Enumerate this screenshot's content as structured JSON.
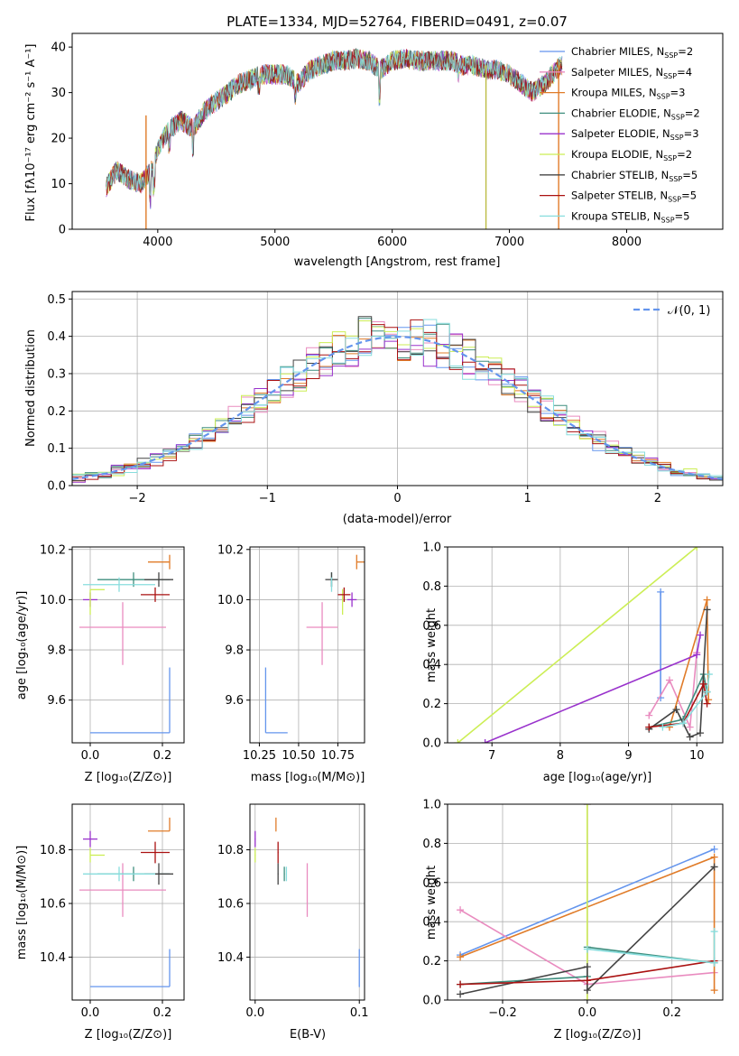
{
  "spectrum": {
    "title": "PLATE=1334, MJD=52764, FIBERID=0491, z=0.07",
    "xlabel": "wavelength [Angstrom, rest frame]",
    "ylabel": "Flux [fλ10⁻¹⁷ erg cm⁻² s⁻¹ A⁻¹]",
    "xlim": [
      3270,
      8820
    ],
    "ylim": [
      0,
      43
    ],
    "xticks": [
      4000,
      5000,
      6000,
      7000,
      8000
    ],
    "yticks": [
      0,
      10,
      20,
      30,
      40
    ],
    "continuum": [
      [
        3560,
        9
      ],
      [
        3650,
        13
      ],
      [
        3750,
        11
      ],
      [
        3850,
        10
      ],
      [
        3950,
        13
      ],
      [
        4000,
        18
      ],
      [
        4100,
        22
      ],
      [
        4200,
        24
      ],
      [
        4300,
        22
      ],
      [
        4400,
        26
      ],
      [
        4500,
        28
      ],
      [
        4600,
        30
      ],
      [
        4700,
        32
      ],
      [
        4800,
        33
      ],
      [
        4900,
        34
      ],
      [
        5000,
        34
      ],
      [
        5100,
        34
      ],
      [
        5200,
        32
      ],
      [
        5300,
        35
      ],
      [
        5400,
        36
      ],
      [
        5500,
        37
      ],
      [
        5600,
        37
      ],
      [
        5700,
        37.5
      ],
      [
        5800,
        37
      ],
      [
        5900,
        35
      ],
      [
        6000,
        37
      ],
      [
        6100,
        37.5
      ],
      [
        6200,
        37
      ],
      [
        6300,
        37
      ],
      [
        6400,
        37
      ],
      [
        6500,
        37
      ],
      [
        6600,
        36
      ],
      [
        6700,
        36
      ],
      [
        6800,
        35
      ],
      [
        6900,
        35
      ],
      [
        7000,
        34
      ],
      [
        7100,
        32
      ],
      [
        7200,
        30
      ],
      [
        7300,
        32
      ],
      [
        7400,
        35
      ],
      [
        7450,
        36
      ]
    ],
    "lines": [
      {
        "x": 3900,
        "y_min": 0,
        "y_max": 25
      },
      {
        "x": 6800,
        "y_min": 0,
        "y_max": 36
      },
      {
        "x": 7420,
        "y_min": 0,
        "y_max": 36
      }
    ],
    "legend_position": "upper right"
  },
  "residuals": {
    "xlabel": "(data-model)/error",
    "ylabel": "Normed distribution",
    "xlim": [
      -2.5,
      2.5
    ],
    "ylim": [
      0,
      0.52
    ],
    "xticks": [
      -2,
      -1,
      0,
      1,
      2
    ],
    "xtick_labels": [
      "−2",
      "−1",
      "0",
      "1",
      "2"
    ],
    "yticks": [
      0.0,
      0.1,
      0.2,
      0.3,
      0.4,
      0.5
    ],
    "ytick_labels": [
      "0.0",
      "0.1",
      "0.2",
      "0.3",
      "0.4",
      "0.5"
    ],
    "gaussian_label": "𝒩(0, 1)",
    "legend_position": "upper right",
    "bin_width": 0.1
  },
  "models": [
    {
      "name": "Chabrier MILES",
      "n": "2",
      "color": "#6495ED"
    },
    {
      "name": "Salpeter MILES",
      "n": "4",
      "color": "#E98BBF"
    },
    {
      "name": "Kroupa MILES",
      "n": "3",
      "color": "#E07B28"
    },
    {
      "name": "Chabrier ELODIE",
      "n": "2",
      "color": "#3E8E7E"
    },
    {
      "name": "Salpeter ELODIE",
      "n": "3",
      "color": "#9932CC"
    },
    {
      "name": "Kroupa ELODIE",
      "n": "2",
      "color": "#CCEE55"
    },
    {
      "name": "Chabrier STELIB",
      "n": "5",
      "color": "#444444"
    },
    {
      "name": "Salpeter STELIB",
      "n": "5",
      "color": "#AA1111"
    },
    {
      "name": "Kroupa STELIB",
      "n": "5",
      "color": "#88DDDD"
    }
  ],
  "legend_suffix": {
    "prefix": "N",
    "subscript": "SSP"
  },
  "fit_points": [
    {
      "Z": 0.22,
      "Z_err": [
        0.22,
        0.0
      ],
      "age": 9.47,
      "age_err": [
        0.0,
        0.26
      ],
      "mass": 10.29,
      "mass_err": [
        0.0,
        0.14
      ],
      "ebv": 0.1,
      "ebv_err": [
        0.0,
        0.0
      ]
    },
    {
      "Z": 0.09,
      "Z_err": [
        0.12,
        0.12
      ],
      "age": 9.89,
      "age_err": [
        0.15,
        0.1
      ],
      "mass": 10.65,
      "mass_err": [
        0.1,
        0.1
      ],
      "ebv": 0.05,
      "ebv_err": [
        0.0,
        0.0
      ]
    },
    {
      "Z": 0.22,
      "Z_err": [
        0.06,
        0.0
      ],
      "age": 10.15,
      "age_err": [
        0.0,
        0.0
      ],
      "mass": 10.87,
      "mass_err": [
        0.0,
        0.05
      ],
      "ebv": 0.02,
      "ebv_err": [
        0.0,
        0.0
      ]
    },
    {
      "Z": 0.12,
      "Z_err": [
        0.1,
        0.1
      ],
      "age": 10.08,
      "age_err": [
        0.0,
        0.0
      ],
      "mass": 10.71,
      "mass_err": [
        0.0,
        0.0
      ],
      "ebv": 0.028,
      "ebv_err": [
        0.0,
        0.0
      ]
    },
    {
      "Z": 0.0,
      "Z_err": [
        0.02,
        0.02
      ],
      "age": 10.0,
      "age_err": [
        0.0,
        0.0
      ],
      "mass": 10.84,
      "mass_err": [
        0.03,
        0.03
      ],
      "ebv": 0.0,
      "ebv_err": [
        0.0,
        0.0
      ]
    },
    {
      "Z": 0.0,
      "Z_err": [
        0.0,
        0.04
      ],
      "age": 10.04,
      "age_err": [
        0.1,
        0.0
      ],
      "mass": 10.78,
      "mass_err": [
        0.0,
        0.0
      ],
      "ebv": 0.0,
      "ebv_err": [
        0.0,
        0.0
      ]
    },
    {
      "Z": 0.19,
      "Z_err": [
        0.04,
        0.04
      ],
      "age": 10.08,
      "age_err": [
        0.0,
        0.0
      ],
      "mass": 10.71,
      "mass_err": [
        0.04,
        0.04
      ],
      "ebv": 0.022,
      "ebv_err": [
        0.0,
        0.0
      ]
    },
    {
      "Z": 0.18,
      "Z_err": [
        0.04,
        0.04
      ],
      "age": 10.02,
      "age_err": [
        0.0,
        0.0
      ],
      "mass": 10.79,
      "mass_err": [
        0.04,
        0.04
      ],
      "ebv": 0.022,
      "ebv_err": [
        0.0,
        0.0
      ]
    },
    {
      "Z": 0.08,
      "Z_err": [
        0.1,
        0.1
      ],
      "age": 10.06,
      "age_err": [
        0.0,
        0.0
      ],
      "mass": 10.71,
      "mass_err": [
        0.0,
        0.0
      ],
      "ebv": 0.03,
      "ebv_err": [
        0.0,
        0.0
      ]
    }
  ],
  "age_Z": {
    "xlabel": "Z [log₁₀(Z/Z⊙)]",
    "ylabel": "age  [log₁₀(age/yr)]",
    "xlim": [
      -0.05,
      0.26
    ],
    "ylim": [
      9.43,
      10.21
    ],
    "xticks": [
      0.0,
      0.2
    ],
    "xtick_labels": [
      "0.0",
      "0.2"
    ],
    "yticks": [
      9.6,
      9.8,
      10.0,
      10.2
    ],
    "ytick_labels": [
      "9.6",
      "9.8",
      "10.0",
      "10.2"
    ]
  },
  "age_mass": {
    "xlabel": "mass [log₁₀(M/M⊙)]",
    "xlim": [
      10.19,
      10.92
    ],
    "ylim": [
      9.43,
      10.21
    ],
    "xticks": [
      10.25,
      10.5,
      10.75
    ],
    "xtick_labels": [
      "10.25",
      "10.50",
      "10.75"
    ],
    "yticks": [
      9.6,
      9.8,
      10.0,
      10.2
    ],
    "ytick_labels": [
      "9.6",
      "9.8",
      "10.0",
      "10.2"
    ]
  },
  "weight_age": {
    "xlabel": "age  [log₁₀(age/yr)]",
    "ylabel": "mass weight",
    "xlim": [
      6.35,
      10.38
    ],
    "ylim": [
      0,
      1
    ],
    "xticks": [
      7,
      8,
      9,
      10
    ],
    "xtick_labels": [
      "7",
      "8",
      "9",
      "10"
    ],
    "yticks": [
      0,
      0.2,
      0.4,
      0.6,
      0.8,
      1.0
    ],
    "ytick_labels": [
      "0.0",
      "0.2",
      "0.4",
      "0.6",
      "0.8",
      "1.0"
    ],
    "series": [
      {
        "x": [
          9.47,
          9.47
        ],
        "y": [
          0.23,
          0.77
        ]
      },
      {
        "x": [
          9.3,
          9.6,
          9.9,
          10.0
        ],
        "y": [
          0.14,
          0.32,
          0.08,
          0.46
        ]
      },
      {
        "x": [
          9.6,
          10.15,
          10.17
        ],
        "y": [
          0.08,
          0.73,
          0.22
        ]
      },
      {
        "x": [
          9.3,
          9.8,
          10.1,
          10.15
        ],
        "y": [
          0.08,
          0.12,
          0.35,
          0.26
        ]
      },
      {
        "x": [
          6.9,
          10.0,
          10.05
        ],
        "y": [
          0.0,
          0.45,
          0.55
        ]
      },
      {
        "x": [
          6.5,
          10.0
        ],
        "y": [
          0.0,
          1.0
        ]
      },
      {
        "x": [
          9.3,
          9.7,
          9.9,
          10.05,
          10.15
        ],
        "y": [
          0.07,
          0.17,
          0.03,
          0.05,
          0.68
        ]
      },
      {
        "x": [
          9.3,
          9.8,
          10.1,
          10.15
        ],
        "y": [
          0.08,
          0.1,
          0.3,
          0.2
        ]
      },
      {
        "x": [
          9.5,
          9.8,
          10.15,
          10.18
        ],
        "y": [
          0.08,
          0.1,
          0.26,
          0.35
        ]
      }
    ]
  },
  "mass_Z": {
    "xlabel": "Z [log₁₀(Z/Z⊙)]",
    "ylabel": "mass [log₁₀(M/M⊙)]",
    "xlim": [
      -0.05,
      0.26
    ],
    "ylim": [
      10.24,
      10.97
    ],
    "xticks": [
      0.0,
      0.2
    ],
    "xtick_labels": [
      "0.0",
      "0.2"
    ],
    "yticks": [
      10.4,
      10.6,
      10.8
    ],
    "ytick_labels": [
      "10.4",
      "10.6",
      "10.8"
    ]
  },
  "mass_ebv": {
    "xlabel": "E(B-V)",
    "xlim": [
      -0.005,
      0.105
    ],
    "ylim": [
      10.24,
      10.97
    ],
    "xticks": [
      0.0,
      0.1
    ],
    "xtick_labels": [
      "0.0",
      "0.1"
    ],
    "yticks": [
      10.4,
      10.6,
      10.8
    ],
    "ytick_labels": [
      "10.4",
      "10.6",
      "10.8"
    ]
  },
  "weight_Z": {
    "xlabel": "Z [log₁₀(Z/Z⊙)]",
    "ylabel": "mass weight",
    "xlim": [
      -0.33,
      0.32
    ],
    "ylim": [
      0,
      1
    ],
    "xticks": [
      -0.2,
      0.0,
      0.2
    ],
    "xtick_labels": [
      "−0.2",
      "0.0",
      "0.2"
    ],
    "yticks": [
      0,
      0.2,
      0.4,
      0.6,
      0.8,
      1.0
    ],
    "ytick_labels": [
      "0.0",
      "0.2",
      "0.4",
      "0.6",
      "0.8",
      "1.0"
    ],
    "series": [
      {
        "x": [
          -0.3,
          0.3
        ],
        "y": [
          0.23,
          0.77
        ]
      },
      {
        "x": [
          -0.3,
          0.0,
          0.3
        ],
        "y": [
          0.46,
          0.08,
          0.14
        ]
      },
      {
        "x": [
          -0.3,
          0.3,
          0.3
        ],
        "y": [
          0.22,
          0.73,
          0.05
        ]
      },
      {
        "x": [
          -0.3,
          0.0,
          0.0,
          0.3
        ],
        "y": [
          0.08,
          0.12,
          0.27,
          0.19
        ]
      },
      {
        "x": [
          0.0,
          0.0
        ],
        "y": [
          0.0,
          1.0
        ]
      },
      {
        "x": [
          0.0,
          0.0
        ],
        "y": [
          0.0,
          1.0
        ]
      },
      {
        "x": [
          -0.3,
          0.0,
          0.0,
          0.3
        ],
        "y": [
          0.03,
          0.17,
          0.05,
          0.68
        ]
      },
      {
        "x": [
          -0.3,
          0.0,
          0.3
        ],
        "y": [
          0.08,
          0.1,
          0.2
        ]
      },
      {
        "x": [
          0.0,
          0.3,
          0.3
        ],
        "y": [
          0.26,
          0.19,
          0.35
        ]
      }
    ]
  }
}
